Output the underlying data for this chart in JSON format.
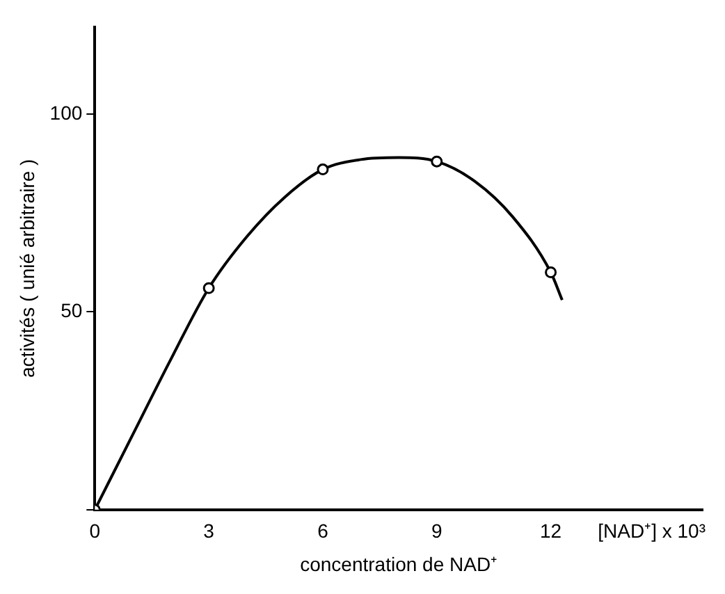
{
  "chart_data": {
    "type": "scatter",
    "xlabel": "concentration de NAD⁺",
    "ylabel": "activités ( unié arbitraire )",
    "annotations": [
      "[NAD⁺] x 10³"
    ],
    "series": [
      {
        "type": "line",
        "color": "#000000",
        "marker": "none",
        "x": [
          0,
          1,
          2,
          3,
          4,
          5,
          6,
          7,
          8,
          9,
          10,
          11,
          12,
          12.3
        ],
        "values": [
          0,
          19,
          38,
          56,
          69,
          79,
          86,
          88.5,
          89,
          88,
          83,
          74,
          60,
          53
        ]
      },
      {
        "color": "#000000",
        "marker": "circle",
        "x": [
          0,
          3,
          6,
          9,
          12
        ],
        "values": [
          0,
          56,
          86,
          88,
          60
        ]
      }
    ],
    "xlim": [
      0,
      16
    ],
    "ylim": [
      0,
      122
    ],
    "xticks": [
      0,
      3,
      6,
      9,
      12
    ],
    "yticks": [
      {
        "value": 0,
        "label": null
      },
      50,
      100
    ],
    "grid": false,
    "legend": false
  }
}
